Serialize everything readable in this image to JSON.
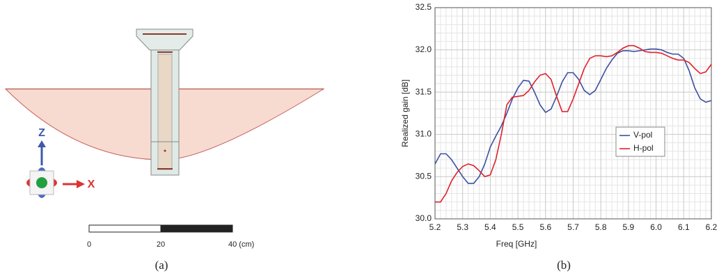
{
  "panel_a": {
    "axis_labels": [
      "Z",
      "X"
    ],
    "scale_labels": [
      "0",
      "20",
      "40 (cm)"
    ],
    "caption": "(a)"
  },
  "chart_data": {
    "type": "line",
    "caption": "(b)",
    "x_label": "Freq [GHz]",
    "y_label": "Realized gain [dB]",
    "x": [
      5.2,
      5.22,
      5.24,
      5.26,
      5.28,
      5.3,
      5.32,
      5.34,
      5.36,
      5.38,
      5.4,
      5.42,
      5.44,
      5.46,
      5.48,
      5.5,
      5.52,
      5.54,
      5.56,
      5.58,
      5.6,
      5.62,
      5.64,
      5.66,
      5.68,
      5.7,
      5.72,
      5.74,
      5.76,
      5.78,
      5.8,
      5.82,
      5.84,
      5.86,
      5.88,
      5.9,
      5.92,
      5.94,
      5.96,
      5.98,
      6.0,
      6.02,
      6.04,
      6.06,
      6.08,
      6.1,
      6.12,
      6.14,
      6.16,
      6.18,
      6.2
    ],
    "series": [
      {
        "name": "V-pol",
        "color": "#3c50a0",
        "values": [
          30.65,
          30.77,
          30.77,
          30.7,
          30.6,
          30.5,
          30.42,
          30.42,
          30.5,
          30.65,
          30.85,
          30.98,
          31.1,
          31.25,
          31.42,
          31.55,
          31.64,
          31.63,
          31.5,
          31.35,
          31.26,
          31.3,
          31.45,
          31.62,
          31.73,
          31.73,
          31.65,
          31.52,
          31.47,
          31.52,
          31.65,
          31.78,
          31.88,
          31.96,
          31.99,
          31.99,
          31.98,
          31.99,
          32.0,
          32.01,
          32.01,
          32.0,
          31.97,
          31.95,
          31.95,
          31.9,
          31.75,
          31.55,
          31.42,
          31.38,
          31.4
        ]
      },
      {
        "name": "H-pol",
        "color": "#e0202a",
        "values": [
          30.2,
          30.2,
          30.3,
          30.45,
          30.55,
          30.62,
          30.65,
          30.63,
          30.57,
          30.5,
          30.52,
          30.7,
          31.0,
          31.35,
          31.44,
          31.45,
          31.46,
          31.52,
          31.62,
          31.7,
          31.72,
          31.65,
          31.45,
          31.27,
          31.27,
          31.42,
          31.6,
          31.78,
          31.9,
          31.93,
          31.93,
          31.92,
          31.93,
          31.97,
          32.02,
          32.05,
          32.05,
          32.02,
          31.98,
          31.97,
          31.97,
          31.96,
          31.93,
          31.9,
          31.88,
          31.88,
          31.85,
          31.78,
          31.72,
          31.74,
          31.83
        ]
      }
    ],
    "xlim": [
      5.2,
      6.2
    ],
    "ylim": [
      30,
      32.5
    ],
    "xticks": [
      5.2,
      5.3,
      5.4,
      5.5,
      5.6,
      5.7,
      5.8,
      5.9,
      {
        "value": 6,
        "label": "6.0"
      },
      6.1,
      6.2
    ],
    "yticks": [
      {
        "value": 30,
        "label": "30.0"
      },
      30.5,
      {
        "value": 31,
        "label": "31.0"
      },
      31.5,
      {
        "value": 32,
        "label": "32.0"
      },
      32.5
    ],
    "grid": true,
    "legend": "center-right"
  }
}
